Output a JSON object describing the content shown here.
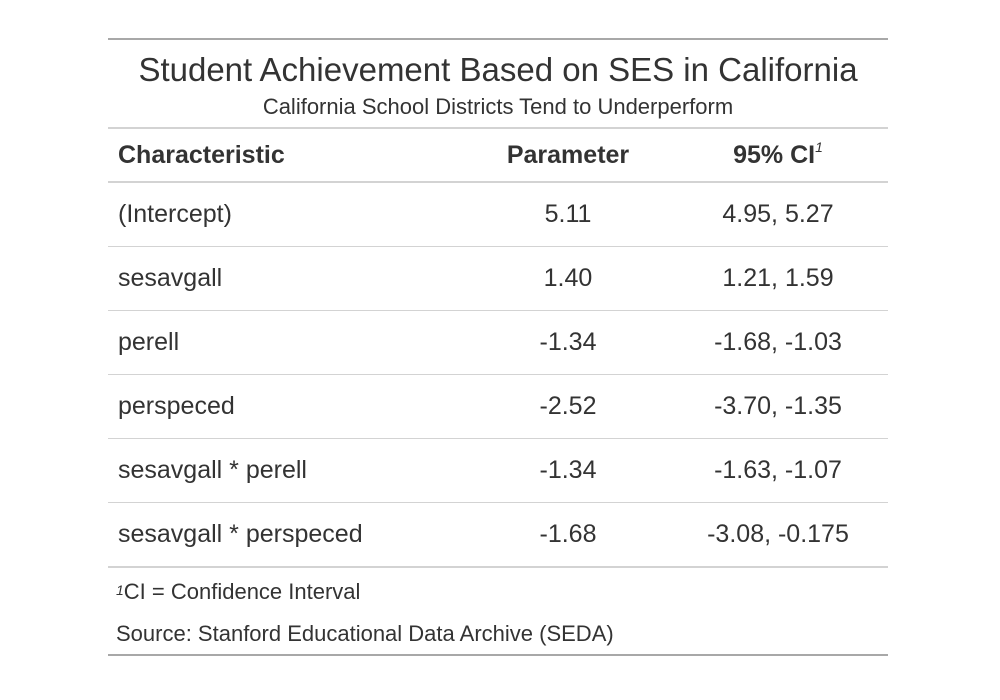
{
  "table": {
    "title": "Student Achievement Based on SES in California",
    "subtitle": "California School Districts Tend to Underperform",
    "headers": {
      "characteristic": "Characteristic",
      "parameter": "Parameter",
      "ci": "95% CI",
      "ci_footnote_marker": "1"
    },
    "rows": [
      {
        "characteristic": "(Intercept)",
        "parameter": "5.11",
        "ci": "4.95, 5.27"
      },
      {
        "characteristic": "sesavgall",
        "parameter": "1.40",
        "ci": "1.21, 1.59"
      },
      {
        "characteristic": "perell",
        "parameter": "-1.34",
        "ci": "-1.68, -1.03"
      },
      {
        "characteristic": "perspeced",
        "parameter": "-2.52",
        "ci": "-3.70, -1.35"
      },
      {
        "characteristic": "sesavgall * perell",
        "parameter": "-1.34",
        "ci": "-1.63, -1.07"
      },
      {
        "characteristic": "sesavgall * perspeced",
        "parameter": "-1.68",
        "ci": "-3.08, -0.175"
      }
    ],
    "footnote": {
      "marker": "1",
      "text": "CI = Confidence Interval"
    },
    "source": "Source: Stanford Educational Data Archive (SEDA)"
  }
}
